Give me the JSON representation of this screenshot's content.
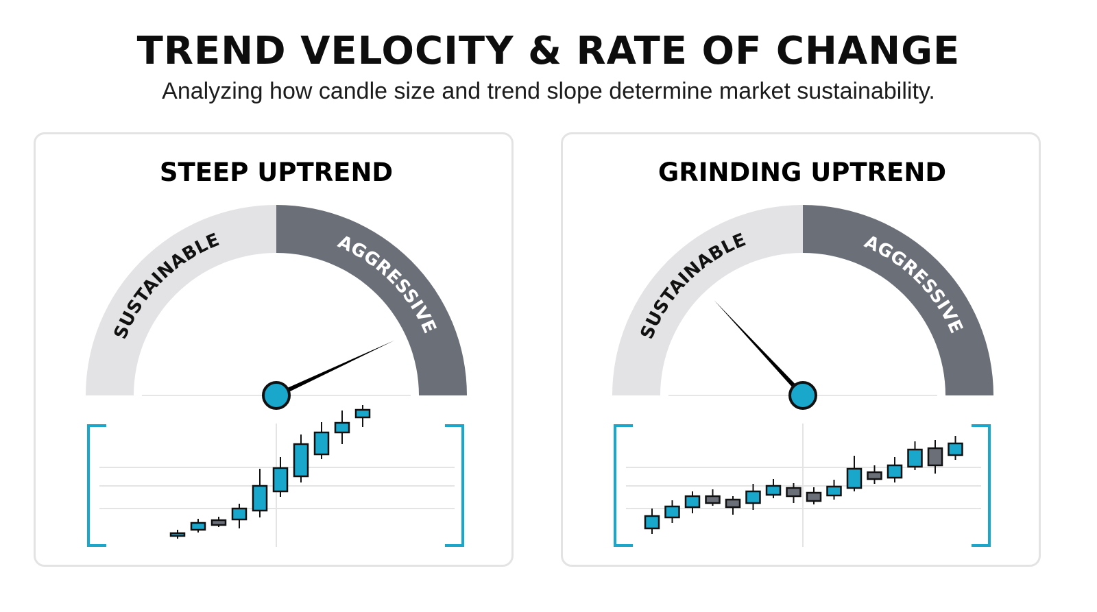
{
  "header": {
    "title": "TREND VELOCITY & RATE OF CHANGE",
    "subtitle": "Analyzing how candle size and trend slope determine market sustainability."
  },
  "colors": {
    "sustainable_zone": "#e3e3e5",
    "aggressive_zone": "#6b6f78",
    "bull_candle": "#1aa7cc",
    "bear_candle": "#6b6f78",
    "bracket": "#1aa7cc",
    "needle": "#000000",
    "hub": "#1aa7cc",
    "panel_border": "#e3e3e3"
  },
  "panels": [
    {
      "title": "STEEP UPTREND",
      "gauge": {
        "left_label": "SUSTAINABLE",
        "right_label": "AGGRESSIVE",
        "needle_deg": 155
      },
      "candles": [
        {
          "o": 2.6,
          "c": 2.9,
          "h": 3.4,
          "l": 2.1,
          "bull": true
        },
        {
          "o": 3.4,
          "c": 4.4,
          "h": 5.0,
          "l": 3.0,
          "bull": true
        },
        {
          "o": 4.8,
          "c": 4.1,
          "h": 5.3,
          "l": 3.8,
          "bull": false
        },
        {
          "o": 4.9,
          "c": 6.5,
          "h": 7.2,
          "l": 3.6,
          "bull": true
        },
        {
          "o": 6.2,
          "c": 9.8,
          "h": 12.3,
          "l": 5.2,
          "bull": true
        },
        {
          "o": 9.0,
          "c": 12.4,
          "h": 14.0,
          "l": 8.2,
          "bull": true
        },
        {
          "o": 11.2,
          "c": 15.9,
          "h": 17.3,
          "l": 10.3,
          "bull": true
        },
        {
          "o": 14.4,
          "c": 17.6,
          "h": 19.1,
          "l": 13.7,
          "bull": true
        },
        {
          "o": 17.6,
          "c": 19.0,
          "h": 20.8,
          "l": 15.9,
          "bull": true
        },
        {
          "o": 19.8,
          "c": 20.9,
          "h": 21.6,
          "l": 18.4,
          "bull": true
        }
      ]
    },
    {
      "title": "GRINDING UPTREND",
      "gauge": {
        "left_label": "SUSTAINABLE",
        "right_label": "AGGRESSIVE",
        "needle_deg": 47
      },
      "candles": [
        {
          "o": 3.8,
          "c": 5.6,
          "h": 6.7,
          "l": 3.0,
          "bull": true
        },
        {
          "o": 5.4,
          "c": 7.0,
          "h": 7.9,
          "l": 4.6,
          "bull": true
        },
        {
          "o": 6.9,
          "c": 8.5,
          "h": 9.2,
          "l": 6.0,
          "bull": true
        },
        {
          "o": 8.5,
          "c": 7.5,
          "h": 9.5,
          "l": 7.1,
          "bull": false
        },
        {
          "o": 8.0,
          "c": 6.9,
          "h": 8.5,
          "l": 5.8,
          "bull": false
        },
        {
          "o": 7.5,
          "c": 9.2,
          "h": 10.3,
          "l": 6.5,
          "bull": true
        },
        {
          "o": 8.7,
          "c": 10.0,
          "h": 11.0,
          "l": 8.2,
          "bull": true
        },
        {
          "o": 9.7,
          "c": 8.5,
          "h": 10.4,
          "l": 7.5,
          "bull": false
        },
        {
          "o": 9.0,
          "c": 7.8,
          "h": 9.8,
          "l": 7.3,
          "bull": false
        },
        {
          "o": 8.6,
          "c": 9.9,
          "h": 10.9,
          "l": 8.0,
          "bull": true
        },
        {
          "o": 9.7,
          "c": 12.5,
          "h": 14.4,
          "l": 9.2,
          "bull": true
        },
        {
          "o": 12.0,
          "c": 11.0,
          "h": 13.0,
          "l": 10.3,
          "bull": false
        },
        {
          "o": 11.2,
          "c": 13.0,
          "h": 14.2,
          "l": 10.5,
          "bull": true
        },
        {
          "o": 12.8,
          "c": 15.3,
          "h": 16.5,
          "l": 12.3,
          "bull": true
        },
        {
          "o": 15.5,
          "c": 13.0,
          "h": 16.7,
          "l": 11.8,
          "bull": false
        },
        {
          "o": 14.5,
          "c": 16.2,
          "h": 17.3,
          "l": 13.8,
          "bull": true
        }
      ]
    }
  ]
}
